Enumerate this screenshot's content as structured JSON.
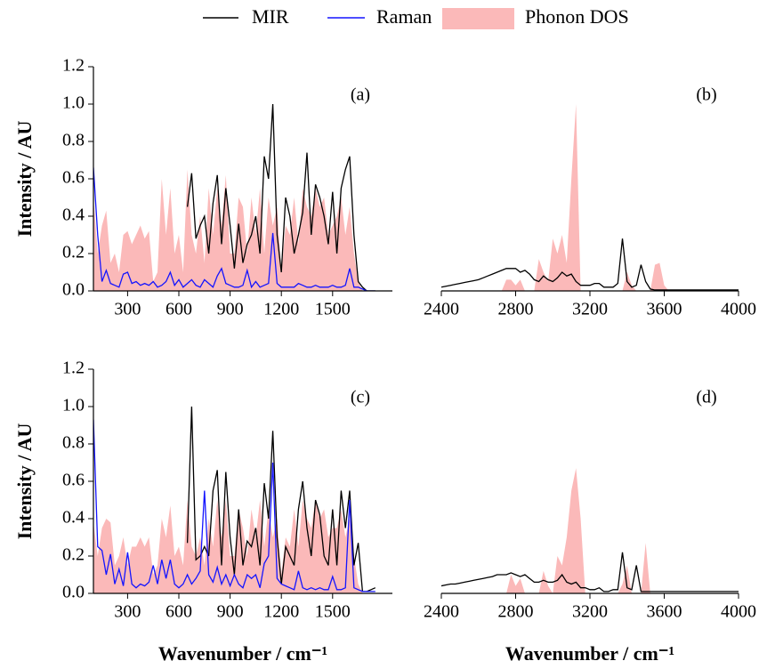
{
  "chart_data": [
    {
      "type": "line",
      "label": "(a)",
      "ylabel": "Intensity / AU",
      "legend": "top",
      "xlim": [
        100,
        1850
      ],
      "xticks": [
        300,
        600,
        900,
        1200,
        1500
      ],
      "ylim": [
        0,
        1.2
      ],
      "yticks": [
        {
          "value": 0,
          "label": "0.0"
        },
        0.2,
        0.4,
        0.6,
        0.8,
        {
          "value": 1,
          "label": "1.0"
        },
        1.2
      ],
      "x": [
        100,
        125,
        150,
        175,
        200,
        225,
        250,
        275,
        300,
        325,
        350,
        375,
        400,
        425,
        450,
        475,
        500,
        525,
        550,
        575,
        600,
        625,
        650,
        675,
        700,
        725,
        750,
        775,
        800,
        825,
        850,
        875,
        900,
        925,
        950,
        975,
        1000,
        1025,
        1050,
        1075,
        1100,
        1125,
        1150,
        1175,
        1200,
        1225,
        1250,
        1275,
        1300,
        1325,
        1350,
        1375,
        1400,
        1425,
        1450,
        1475,
        1500,
        1525,
        1550,
        1575,
        1600,
        1625,
        1650,
        1675,
        1700,
        1725,
        1750
      ],
      "series": [
        {
          "name": "MIR",
          "color": "#000000",
          "kind": "line",
          "values": [
            null,
            null,
            null,
            null,
            null,
            null,
            null,
            null,
            null,
            null,
            null,
            null,
            null,
            null,
            null,
            null,
            null,
            null,
            null,
            null,
            null,
            null,
            0.45,
            0.63,
            0.28,
            0.35,
            0.4,
            0.2,
            0.47,
            0.62,
            0.25,
            0.55,
            0.35,
            0.12,
            0.36,
            0.15,
            0.25,
            0.3,
            0.4,
            0.2,
            0.72,
            0.6,
            1.0,
            0.3,
            0.1,
            0.5,
            0.4,
            0.2,
            0.3,
            0.42,
            0.74,
            0.3,
            0.57,
            0.5,
            0.4,
            0.25,
            0.53,
            0.2,
            0.55,
            0.65,
            0.72,
            0.3,
            0.05,
            0.02,
            0,
            0,
            0
          ]
        },
        {
          "name": "Raman",
          "color": "#1414ff",
          "kind": "line",
          "values": [
            0.66,
            0.3,
            0.05,
            0.11,
            0.04,
            0.03,
            0.02,
            0.09,
            0.1,
            0.04,
            0.05,
            0.03,
            0.04,
            0.03,
            0.05,
            0.02,
            0.03,
            0.05,
            0.1,
            0.03,
            0.06,
            0.02,
            0.04,
            0.06,
            0.03,
            0.02,
            0.06,
            0.04,
            0.02,
            0.08,
            0.12,
            0.04,
            0.03,
            0.02,
            0.02,
            0.03,
            0.11,
            0.02,
            0.05,
            0.02,
            0.03,
            0.04,
            0.31,
            0.04,
            0.02,
            0.02,
            0.02,
            0.02,
            0.04,
            0.03,
            0.02,
            0.02,
            0.03,
            0.02,
            0.02,
            0.02,
            0.03,
            0.02,
            0.02,
            0.03,
            0.12,
            0.02,
            0.02,
            0.01,
            0,
            0,
            0
          ]
        },
        {
          "name": "Phonon DOS",
          "color": "#fbb9b9",
          "kind": "area",
          "values": [
            0.5,
            0.2,
            0.35,
            0.43,
            0.15,
            0.2,
            0.1,
            0.3,
            0.32,
            0.25,
            0.3,
            0.35,
            0.28,
            0.32,
            0.05,
            0.1,
            0.6,
            0.3,
            0.55,
            0.2,
            0.3,
            0.1,
            0.65,
            0.3,
            0.2,
            0.4,
            0.15,
            0.55,
            0.3,
            0.55,
            0.35,
            0.62,
            0.2,
            0.2,
            0.5,
            0.45,
            0.2,
            0.5,
            0.3,
            0.55,
            0.2,
            0.5,
            0.35,
            0.45,
            0.1,
            0.35,
            0.3,
            0.5,
            0.25,
            0.55,
            0.45,
            0.4,
            0.55,
            0.45,
            0.5,
            0.3,
            0.35,
            0.4,
            0.5,
            0.3,
            0.45,
            0.2,
            0.05,
            0,
            0,
            0,
            0
          ]
        }
      ]
    },
    {
      "type": "line",
      "label": "(b)",
      "xlim": [
        2400,
        4000
      ],
      "xticks": [
        2400,
        2800,
        3200,
        3600,
        4000
      ],
      "ylim": [
        0,
        1.2
      ],
      "x": [
        2400,
        2425,
        2450,
        2475,
        2500,
        2525,
        2550,
        2575,
        2600,
        2625,
        2650,
        2675,
        2700,
        2725,
        2750,
        2775,
        2800,
        2825,
        2850,
        2875,
        2900,
        2925,
        2950,
        2975,
        3000,
        3025,
        3050,
        3075,
        3100,
        3125,
        3150,
        3175,
        3200,
        3225,
        3250,
        3275,
        3300,
        3325,
        3350,
        3375,
        3400,
        3425,
        3450,
        3475,
        3500,
        3525,
        3550,
        3575,
        3600,
        3625,
        3650,
        3675,
        3700,
        3725,
        3750,
        3775,
        3800,
        3825,
        3850,
        3875,
        3900,
        3925,
        3950,
        3975,
        4000
      ],
      "series": [
        {
          "name": "MIR",
          "color": "#000000",
          "kind": "line",
          "values": [
            0.02,
            0.025,
            0.03,
            0.035,
            0.04,
            0.045,
            0.05,
            0.055,
            0.06,
            0.07,
            0.08,
            0.09,
            0.1,
            0.11,
            0.12,
            0.12,
            0.12,
            0.1,
            0.11,
            0.09,
            0.06,
            0.05,
            0.08,
            0.06,
            0.05,
            0.07,
            0.1,
            0.08,
            0.09,
            0.05,
            0.03,
            0.03,
            0.03,
            0.04,
            0.04,
            0.02,
            0.02,
            0.02,
            0.04,
            0.28,
            0.05,
            0.02,
            0.03,
            0.14,
            0.05,
            0.01,
            0.005,
            0.005,
            0.005,
            0.005,
            0.005,
            0.005,
            0.005,
            0.005,
            0.005,
            0.005,
            0.005,
            0.005,
            0.005,
            0.005,
            0.005,
            0.005,
            0.005,
            0.005,
            0.005
          ]
        },
        {
          "name": "Phonon DOS",
          "color": "#fbb9b9",
          "kind": "area",
          "values": [
            0,
            0,
            0,
            0,
            0,
            0,
            0,
            0,
            0,
            0,
            0,
            0,
            0,
            0,
            0.06,
            0.06,
            0.03,
            0.06,
            0,
            0,
            0,
            0.17,
            0.1,
            0.05,
            0.28,
            0.2,
            0.3,
            0.15,
            0.6,
            1.0,
            0,
            0,
            0,
            0,
            0,
            0,
            0,
            0,
            0,
            0,
            0.1,
            0.03,
            0,
            0,
            0,
            0,
            0.14,
            0.15,
            0.03,
            0,
            0,
            0,
            0,
            0,
            0,
            0,
            0,
            0,
            0,
            0,
            0,
            0,
            0,
            0,
            0
          ]
        }
      ]
    },
    {
      "type": "line",
      "label": "(c)",
      "ylabel": "Intensity / AU",
      "xlabel": "Wavenumber / cm⁻¹",
      "xlim": [
        100,
        1850
      ],
      "xticks": [
        300,
        600,
        900,
        1200,
        1500
      ],
      "ylim": [
        0,
        1.2
      ],
      "yticks": [
        {
          "value": 0,
          "label": "0.0"
        },
        0.2,
        0.4,
        0.6,
        0.8,
        {
          "value": 1,
          "label": "1.0"
        },
        1.2
      ],
      "x": [
        100,
        125,
        150,
        175,
        200,
        225,
        250,
        275,
        300,
        325,
        350,
        375,
        400,
        425,
        450,
        475,
        500,
        525,
        550,
        575,
        600,
        625,
        650,
        675,
        700,
        725,
        750,
        775,
        800,
        825,
        850,
        875,
        900,
        925,
        950,
        975,
        1000,
        1025,
        1050,
        1075,
        1100,
        1125,
        1150,
        1175,
        1200,
        1225,
        1250,
        1275,
        1300,
        1325,
        1350,
        1375,
        1400,
        1425,
        1450,
        1475,
        1500,
        1525,
        1550,
        1575,
        1600,
        1625,
        1650,
        1675,
        1700,
        1725,
        1750
      ],
      "series": [
        {
          "name": "MIR",
          "color": "#000000",
          "kind": "line",
          "values": [
            null,
            null,
            null,
            null,
            null,
            null,
            null,
            null,
            null,
            null,
            null,
            null,
            null,
            null,
            null,
            null,
            null,
            null,
            null,
            null,
            null,
            null,
            0.27,
            1.0,
            0.18,
            0.2,
            0.25,
            0.2,
            0.55,
            0.66,
            0.15,
            0.65,
            0.3,
            0.1,
            0.45,
            0.15,
            0.28,
            0.25,
            0.35,
            0.15,
            0.59,
            0.4,
            0.87,
            0.3,
            0.05,
            0.25,
            0.2,
            0.15,
            0.45,
            0.6,
            0.35,
            0.2,
            0.5,
            0.42,
            0.2,
            0.15,
            0.45,
            0.15,
            0.55,
            0.35,
            0.55,
            0.15,
            0.27,
            0.01,
            0.01,
            0.02,
            0.03
          ]
        },
        {
          "name": "Raman",
          "color": "#1414ff",
          "kind": "line",
          "values": [
            0.93,
            0.25,
            0.23,
            0.1,
            0.21,
            0.05,
            0.13,
            0.04,
            0.22,
            0.05,
            0.03,
            0.05,
            0.04,
            0.06,
            0.15,
            0.05,
            0.18,
            0.08,
            0.18,
            0.05,
            0.03,
            0.05,
            0.1,
            0.05,
            0.08,
            0.12,
            0.55,
            0.1,
            0.06,
            0.14,
            0.05,
            0.1,
            0.04,
            0.1,
            0.05,
            0.03,
            0.1,
            0.08,
            0.1,
            0.03,
            0.16,
            0.2,
            0.7,
            0.08,
            0.05,
            0.04,
            0.03,
            0.02,
            0.12,
            0.03,
            0.02,
            0.03,
            0.02,
            0.03,
            0.02,
            0.02,
            0.09,
            0.02,
            0.02,
            0.03,
            0.5,
            0.03,
            0.02,
            0.01,
            0.01,
            0.01,
            0.01
          ]
        },
        {
          "name": "Phonon DOS",
          "color": "#fbb9b9",
          "kind": "area",
          "values": [
            0.38,
            0.2,
            0.35,
            0.4,
            0.38,
            0.15,
            0.2,
            0.3,
            0.15,
            0.25,
            0.25,
            0.3,
            0.25,
            0.3,
            0.1,
            0.15,
            0.4,
            0.3,
            0.47,
            0.2,
            0.25,
            0.15,
            0.5,
            0.25,
            0.2,
            0.3,
            0.15,
            0.4,
            0.25,
            0.5,
            0.3,
            0.5,
            0.2,
            0.2,
            0.45,
            0.35,
            0.2,
            0.45,
            0.3,
            0.5,
            0.25,
            0.45,
            0.3,
            0.4,
            0.1,
            0.3,
            0.25,
            0.45,
            0.25,
            0.5,
            0.4,
            0.35,
            0.5,
            0.4,
            0.45,
            0.3,
            0.35,
            0.35,
            0.45,
            0.3,
            0.4,
            0.2,
            0.05,
            0,
            0,
            0,
            0
          ]
        }
      ]
    },
    {
      "type": "line",
      "label": "(d)",
      "xlabel": "Wavenumber / cm⁻¹",
      "xlim": [
        2400,
        4000
      ],
      "xticks": [
        2400,
        2800,
        3200,
        3600,
        4000
      ],
      "ylim": [
        0,
        1.2
      ],
      "x": [
        2400,
        2425,
        2450,
        2475,
        2500,
        2525,
        2550,
        2575,
        2600,
        2625,
        2650,
        2675,
        2700,
        2725,
        2750,
        2775,
        2800,
        2825,
        2850,
        2875,
        2900,
        2925,
        2950,
        2975,
        3000,
        3025,
        3050,
        3075,
        3100,
        3125,
        3150,
        3175,
        3200,
        3225,
        3250,
        3275,
        3300,
        3325,
        3350,
        3375,
        3400,
        3425,
        3450,
        3475,
        3500,
        3525,
        3550,
        3575,
        3600,
        3625,
        3650,
        3675,
        3700,
        3725,
        3750,
        3775,
        3800,
        3825,
        3850,
        3875,
        3900,
        3925,
        3950,
        3975,
        4000
      ],
      "series": [
        {
          "name": "MIR",
          "color": "#000000",
          "kind": "line",
          "values": [
            0.04,
            0.045,
            0.05,
            0.05,
            0.055,
            0.06,
            0.065,
            0.07,
            0.075,
            0.08,
            0.085,
            0.09,
            0.1,
            0.1,
            0.1,
            0.11,
            0.1,
            0.09,
            0.1,
            0.08,
            0.06,
            0.06,
            0.07,
            0.06,
            0.06,
            0.07,
            0.1,
            0.06,
            0.05,
            0.06,
            0.03,
            0.03,
            0.02,
            0.02,
            0.03,
            0.01,
            0.01,
            0.02,
            0.02,
            0.22,
            0.03,
            0.02,
            0.15,
            0.01,
            0.01,
            0.01,
            0.01,
            0.01,
            0.01,
            0.01,
            0.01,
            0.01,
            0.01,
            0.01,
            0.01,
            0.01,
            0.01,
            0.01,
            0.01,
            0.01,
            0.01,
            0.01,
            0.01,
            0.01,
            0.01
          ]
        },
        {
          "name": "Phonon DOS",
          "color": "#fbb9b9",
          "kind": "area",
          "values": [
            0,
            0,
            0,
            0,
            0,
            0,
            0,
            0,
            0,
            0,
            0,
            0,
            0,
            0,
            0,
            0.1,
            0.04,
            0.08,
            0,
            0,
            0,
            0,
            0.12,
            0.04,
            0,
            0.2,
            0.15,
            0.3,
            0.55,
            0.67,
            0.4,
            0,
            0,
            0,
            0,
            0,
            0,
            0,
            0,
            0.05,
            0.15,
            0,
            0,
            0,
            0.27,
            0,
            0,
            0,
            0,
            0,
            0,
            0,
            0,
            0,
            0,
            0,
            0,
            0,
            0,
            0,
            0,
            0,
            0,
            0,
            0
          ]
        }
      ]
    }
  ]
}
